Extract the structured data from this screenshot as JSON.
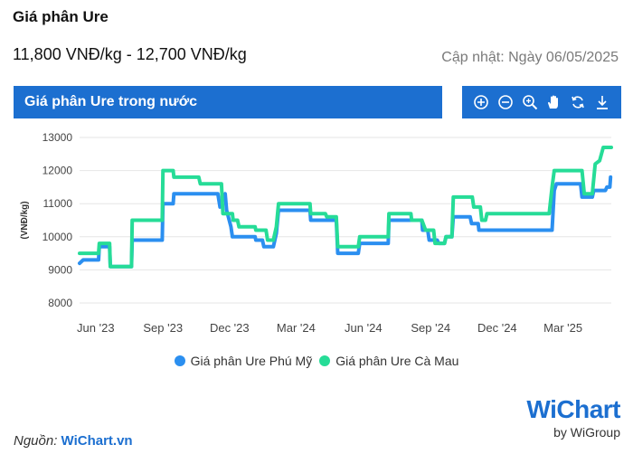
{
  "header": {
    "title": "Giá phân Ure",
    "price_range": "11,800 VNĐ/kg - 12,700 VNĐ/kg",
    "updated": "Cập nhật: Ngày 06/05/2025"
  },
  "banner": {
    "label": "Giá phân Ure trong nước"
  },
  "toolbar": {
    "icons": [
      "zoom-in-icon",
      "zoom-out-icon",
      "magnifier-icon",
      "pan-hand-icon",
      "reset-icon",
      "download-icon"
    ]
  },
  "colors": {
    "accent": "#1c6fd0",
    "series_phu_my": "#2b8ff0",
    "series_ca_mau": "#26dc97"
  },
  "footer": {
    "source_label": "Nguồn:",
    "source_site": "WiChart.vn",
    "logo_text": "WiChart",
    "logo_sub": "by WiGroup"
  },
  "chart_data": {
    "type": "line",
    "title": "",
    "xlabel": "",
    "ylabel": "(VNĐ/kg)",
    "ylim": [
      8000,
      13000
    ],
    "yticks": [
      8000,
      9000,
      10000,
      11000,
      12000,
      13000
    ],
    "xlim": [
      "2023-05-10",
      "2025-05-06"
    ],
    "xticks": [
      {
        "label": "Jun '23",
        "date": "2023-06-01"
      },
      {
        "label": "Sep '23",
        "date": "2023-09-01"
      },
      {
        "label": "Dec '23",
        "date": "2023-12-01"
      },
      {
        "label": "Mar '24",
        "date": "2024-03-01"
      },
      {
        "label": "Jun '24",
        "date": "2024-06-01"
      },
      {
        "label": "Sep '24",
        "date": "2024-09-01"
      },
      {
        "label": "Dec '24",
        "date": "2024-12-01"
      },
      {
        "label": "Mar '25",
        "date": "2025-03-01"
      }
    ],
    "grid": "horizontal",
    "legend": "bottom",
    "series": [
      {
        "name": "Giá phân Ure Phú Mỹ",
        "color": "#2b8ff0",
        "points": [
          [
            "2023-05-10",
            9200
          ],
          [
            "2023-05-15",
            9300
          ],
          [
            "2023-06-05",
            9300
          ],
          [
            "2023-06-06",
            9700
          ],
          [
            "2023-06-20",
            9700
          ],
          [
            "2023-06-21",
            9100
          ],
          [
            "2023-07-20",
            9100
          ],
          [
            "2023-07-21",
            9900
          ],
          [
            "2023-08-31",
            9900
          ],
          [
            "2023-09-01",
            11000
          ],
          [
            "2023-09-15",
            11000
          ],
          [
            "2023-09-16",
            11300
          ],
          [
            "2023-11-15",
            11300
          ],
          [
            "2023-11-18",
            10900
          ],
          [
            "2023-11-25",
            11300
          ],
          [
            "2023-11-27",
            10800
          ],
          [
            "2023-12-03",
            10300
          ],
          [
            "2023-12-05",
            10000
          ],
          [
            "2024-01-05",
            10000
          ],
          [
            "2024-01-06",
            9900
          ],
          [
            "2024-01-15",
            9900
          ],
          [
            "2024-01-17",
            9700
          ],
          [
            "2024-01-30",
            9700
          ],
          [
            "2024-02-03",
            10100
          ],
          [
            "2024-02-06",
            10800
          ],
          [
            "2024-03-20",
            10800
          ],
          [
            "2024-03-21",
            10500
          ],
          [
            "2024-04-25",
            10500
          ],
          [
            "2024-04-27",
            9500
          ],
          [
            "2024-05-25",
            9500
          ],
          [
            "2024-05-27",
            9800
          ],
          [
            "2024-07-05",
            9800
          ],
          [
            "2024-07-06",
            10500
          ],
          [
            "2024-08-20",
            10500
          ],
          [
            "2024-08-21",
            10200
          ],
          [
            "2024-08-28",
            10200
          ],
          [
            "2024-08-30",
            9900
          ],
          [
            "2024-09-10",
            9900
          ],
          [
            "2024-09-12",
            9800
          ],
          [
            "2024-09-20",
            9800
          ],
          [
            "2024-09-22",
            10000
          ],
          [
            "2024-09-30",
            10000
          ],
          [
            "2024-10-02",
            10600
          ],
          [
            "2024-10-25",
            10600
          ],
          [
            "2024-10-27",
            10400
          ],
          [
            "2024-11-05",
            10400
          ],
          [
            "2024-11-06",
            10200
          ],
          [
            "2025-02-14",
            10200
          ],
          [
            "2025-02-17",
            11400
          ],
          [
            "2025-02-20",
            11600
          ],
          [
            "2025-03-25",
            11600
          ],
          [
            "2025-03-27",
            11200
          ],
          [
            "2025-04-10",
            11200
          ],
          [
            "2025-04-12",
            11400
          ],
          [
            "2025-04-28",
            11400
          ],
          [
            "2025-04-30",
            11500
          ],
          [
            "2025-05-04",
            11500
          ],
          [
            "2025-05-05",
            11800
          ]
        ]
      },
      {
        "name": "Giá phân Ure Cà Mau",
        "color": "#26dc97",
        "points": [
          [
            "2023-05-10",
            9500
          ],
          [
            "2023-06-05",
            9500
          ],
          [
            "2023-06-06",
            9800
          ],
          [
            "2023-06-20",
            9800
          ],
          [
            "2023-06-21",
            9100
          ],
          [
            "2023-07-20",
            9100
          ],
          [
            "2023-07-21",
            10500
          ],
          [
            "2023-08-31",
            10500
          ],
          [
            "2023-09-01",
            12000
          ],
          [
            "2023-09-15",
            12000
          ],
          [
            "2023-09-16",
            11800
          ],
          [
            "2023-10-20",
            11800
          ],
          [
            "2023-10-22",
            11600
          ],
          [
            "2023-11-20",
            11600
          ],
          [
            "2023-11-22",
            10700
          ],
          [
            "2023-12-05",
            10700
          ],
          [
            "2023-12-06",
            10500
          ],
          [
            "2023-12-12",
            10500
          ],
          [
            "2023-12-14",
            10300
          ],
          [
            "2024-01-05",
            10300
          ],
          [
            "2024-01-06",
            10200
          ],
          [
            "2024-01-20",
            10200
          ],
          [
            "2024-01-22",
            9900
          ],
          [
            "2024-01-30",
            9900
          ],
          [
            "2024-02-03",
            10300
          ],
          [
            "2024-02-06",
            11000
          ],
          [
            "2024-03-20",
            11000
          ],
          [
            "2024-03-21",
            10700
          ],
          [
            "2024-04-10",
            10700
          ],
          [
            "2024-04-12",
            10600
          ],
          [
            "2024-04-25",
            10600
          ],
          [
            "2024-04-27",
            9700
          ],
          [
            "2024-05-25",
            9700
          ],
          [
            "2024-05-27",
            10000
          ],
          [
            "2024-07-05",
            10000
          ],
          [
            "2024-07-06",
            10700
          ],
          [
            "2024-08-05",
            10700
          ],
          [
            "2024-08-06",
            10500
          ],
          [
            "2024-08-20",
            10500
          ],
          [
            "2024-08-25",
            10200
          ],
          [
            "2024-09-05",
            10200
          ],
          [
            "2024-09-07",
            9800
          ],
          [
            "2024-09-20",
            9800
          ],
          [
            "2024-09-22",
            10000
          ],
          [
            "2024-09-30",
            10000
          ],
          [
            "2024-10-02",
            11200
          ],
          [
            "2024-10-28",
            11200
          ],
          [
            "2024-10-30",
            10900
          ],
          [
            "2024-11-08",
            10900
          ],
          [
            "2024-11-10",
            10500
          ],
          [
            "2024-11-15",
            10500
          ],
          [
            "2024-11-17",
            10700
          ],
          [
            "2025-02-10",
            10700
          ],
          [
            "2025-02-14",
            11500
          ],
          [
            "2025-02-17",
            12000
          ],
          [
            "2025-03-27",
            12000
          ],
          [
            "2025-03-30",
            11300
          ],
          [
            "2025-04-10",
            11300
          ],
          [
            "2025-04-14",
            12200
          ],
          [
            "2025-04-20",
            12300
          ],
          [
            "2025-04-25",
            12700
          ],
          [
            "2025-05-06",
            12700
          ]
        ]
      }
    ]
  }
}
